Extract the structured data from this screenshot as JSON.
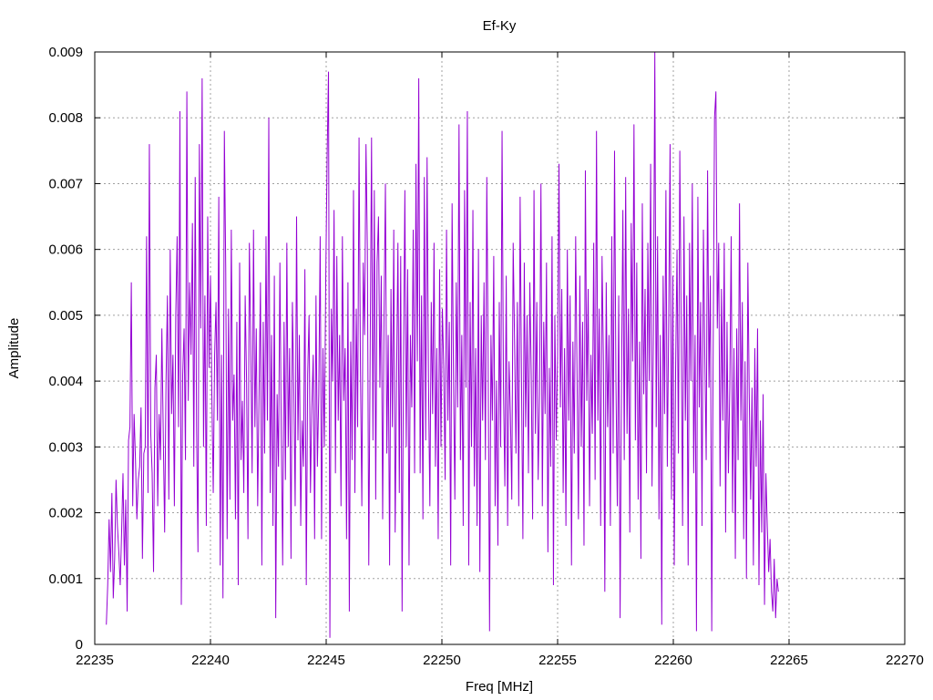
{
  "chart_data": {
    "type": "line",
    "title": "Ef-Ky",
    "xlabel": "Freq [MHz]",
    "ylabel": "Amplitude",
    "xlim": [
      22235,
      22270
    ],
    "ylim": [
      0,
      0.009
    ],
    "x_ticks": [
      "22235",
      "22240",
      "22245",
      "22250",
      "22255",
      "22260",
      "22265",
      "22270"
    ],
    "y_ticks": [
      "0",
      "0.001",
      "0.002",
      "0.003",
      "0.004",
      "0.005",
      "0.006",
      "0.007",
      "0.008",
      "0.009"
    ],
    "grid": true,
    "legend": "none",
    "series": [
      {
        "color": "#9400d3",
        "x_start": 22235.5,
        "x_step": 0.06,
        "values": [
          0.0003,
          0.0009,
          0.0019,
          0.0011,
          0.0023,
          0.0007,
          0.0013,
          0.0025,
          0.0018,
          0.0014,
          0.0009,
          0.0017,
          0.0026,
          0.0012,
          0.0022,
          0.0005,
          0.0031,
          0.0033,
          0.0055,
          0.0021,
          0.0035,
          0.0028,
          0.0019,
          0.0025,
          0.0027,
          0.0036,
          0.0013,
          0.0029,
          0.003,
          0.0062,
          0.0023,
          0.0076,
          0.0032,
          0.0026,
          0.0011,
          0.0039,
          0.0044,
          0.0021,
          0.0035,
          0.0028,
          0.0048,
          0.0032,
          0.0017,
          0.004,
          0.0053,
          0.0022,
          0.006,
          0.0035,
          0.0044,
          0.0021,
          0.005,
          0.0062,
          0.0033,
          0.0081,
          0.0006,
          0.0041,
          0.0048,
          0.0028,
          0.0084,
          0.0037,
          0.0055,
          0.0044,
          0.0064,
          0.0027,
          0.0071,
          0.0033,
          0.0014,
          0.0076,
          0.0048,
          0.0086,
          0.003,
          0.0053,
          0.0018,
          0.0065,
          0.0042,
          0.0056,
          0.0038,
          0.0023,
          0.0044,
          0.0052,
          0.0034,
          0.0068,
          0.0012,
          0.0044,
          0.0007,
          0.0078,
          0.0057,
          0.0016,
          0.0051,
          0.0022,
          0.0063,
          0.0034,
          0.0041,
          0.0019,
          0.0049,
          0.0009,
          0.0058,
          0.0028,
          0.0037,
          0.0023,
          0.0053,
          0.004,
          0.0016,
          0.0061,
          0.0046,
          0.0026,
          0.0063,
          0.0033,
          0.0048,
          0.0021,
          0.0038,
          0.0055,
          0.0012,
          0.0049,
          0.0029,
          0.0062,
          0.0034,
          0.008,
          0.0023,
          0.0047,
          0.0018,
          0.0056,
          0.0004,
          0.0038,
          0.0027,
          0.0058,
          0.0032,
          0.0012,
          0.0049,
          0.0025,
          0.0061,
          0.003,
          0.0045,
          0.0013,
          0.0052,
          0.0039,
          0.0021,
          0.0065,
          0.0031,
          0.0047,
          0.0018,
          0.0034,
          0.0027,
          0.0057,
          0.0009,
          0.0041,
          0.005,
          0.0023,
          0.0036,
          0.0044,
          0.0016,
          0.0053,
          0.0027,
          0.0038,
          0.0062,
          0.0016,
          0.0045,
          0.003,
          0.0055,
          0.0074,
          0.0087,
          0.0001,
          0.0051,
          0.004,
          0.0066,
          0.0026,
          0.0059,
          0.0034,
          0.0047,
          0.0021,
          0.0062,
          0.0037,
          0.0045,
          0.0016,
          0.0055,
          0.0005,
          0.0046,
          0.0028,
          0.0069,
          0.0023,
          0.0051,
          0.0033,
          0.0077,
          0.0042,
          0.0021,
          0.0058,
          0.0047,
          0.0076,
          0.006,
          0.0012,
          0.0044,
          0.0077,
          0.0031,
          0.0069,
          0.0022,
          0.0058,
          0.0065,
          0.0039,
          0.0056,
          0.0019,
          0.005,
          0.007,
          0.0029,
          0.0047,
          0.0012,
          0.0054,
          0.0033,
          0.0063,
          0.0017,
          0.004,
          0.0061,
          0.0023,
          0.0059,
          0.0005,
          0.0043,
          0.0069,
          0.003,
          0.0057,
          0.0012,
          0.0047,
          0.0036,
          0.0063,
          0.0026,
          0.0073,
          0.0043,
          0.0086,
          0.0026,
          0.0053,
          0.0019,
          0.0071,
          0.0031,
          0.0074,
          0.004,
          0.0021,
          0.0052,
          0.0035,
          0.0061,
          0.0027,
          0.0045,
          0.0016,
          0.0057,
          0.003,
          0.0051,
          0.0042,
          0.0025,
          0.0063,
          0.0034,
          0.0049,
          0.0012,
          0.0067,
          0.0041,
          0.0022,
          0.0055,
          0.0036,
          0.0079,
          0.0028,
          0.0047,
          0.0018,
          0.0069,
          0.0039,
          0.0081,
          0.0012,
          0.0052,
          0.003,
          0.0066,
          0.0024,
          0.0045,
          0.0018,
          0.006,
          0.0011,
          0.005,
          0.0034,
          0.0055,
          0.0028,
          0.0071,
          0.0043,
          0.0002,
          0.0047,
          0.0034,
          0.0059,
          0.0021,
          0.004,
          0.0015,
          0.0052,
          0.003,
          0.0078,
          0.0039,
          0.0024,
          0.0056,
          0.0018,
          0.0043,
          0.0035,
          0.0022,
          0.0061,
          0.0046,
          0.0029,
          0.0052,
          0.0021,
          0.0068,
          0.004,
          0.0016,
          0.0058,
          0.0033,
          0.005,
          0.0026,
          0.0055,
          0.0041,
          0.0019,
          0.0069,
          0.0032,
          0.0052,
          0.0025,
          0.0038,
          0.007,
          0.0021,
          0.0049,
          0.0035,
          0.0058,
          0.0014,
          0.0042,
          0.0027,
          0.0062,
          0.0009,
          0.005,
          0.0031,
          0.0044,
          0.0073,
          0.0036,
          0.0054,
          0.0023,
          0.0045,
          0.0018,
          0.006,
          0.0034,
          0.0053,
          0.0012,
          0.0046,
          0.0029,
          0.0062,
          0.0041,
          0.0019,
          0.0056,
          0.003,
          0.0049,
          0.0015,
          0.0072,
          0.0037,
          0.0054,
          0.0021,
          0.0044,
          0.0032,
          0.0061,
          0.0025,
          0.0078,
          0.0034,
          0.0051,
          0.0018,
          0.0059,
          0.0043,
          0.0008,
          0.0055,
          0.0033,
          0.0047,
          0.0018,
          0.0062,
          0.0029,
          0.0075,
          0.004,
          0.0021,
          0.0053,
          0.0004,
          0.0039,
          0.0066,
          0.0028,
          0.0071,
          0.0032,
          0.0051,
          0.0017,
          0.0064,
          0.0043,
          0.0079,
          0.0031,
          0.0058,
          0.0022,
          0.0046,
          0.0013,
          0.0067,
          0.0038,
          0.0054,
          0.0026,
          0.0061,
          0.004,
          0.0073,
          0.0024,
          0.0048,
          0.009,
          0.0033,
          0.0062,
          0.0019,
          0.0047,
          0.0003,
          0.0056,
          0.0035,
          0.0069,
          0.0027,
          0.0049,
          0.0076,
          0.0022,
          0.0056,
          0.0012,
          0.0042,
          0.006,
          0.0029,
          0.0075,
          0.0048,
          0.0018,
          0.0065,
          0.0034,
          0.0053,
          0.0012,
          0.0061,
          0.004,
          0.007,
          0.0026,
          0.0047,
          0.0002,
          0.0068,
          0.0036,
          0.0052,
          0.0018,
          0.0063,
          0.0044,
          0.0028,
          0.0072,
          0.0039,
          0.0056,
          0.0002,
          0.0044,
          0.008,
          0.0084,
          0.0048,
          0.0061,
          0.0024,
          0.0054,
          0.0034,
          0.0061,
          0.0017,
          0.0049,
          0.0026,
          0.0039,
          0.0062,
          0.002,
          0.0045,
          0.0013,
          0.0048,
          0.0028,
          0.0067,
          0.0034,
          0.0052,
          0.0016,
          0.0043,
          0.001,
          0.0058,
          0.0038,
          0.0022,
          0.0039,
          0.0012,
          0.0045,
          0.0027,
          0.0048,
          0.0009,
          0.0034,
          0.0017,
          0.0038,
          0.0006,
          0.0026,
          0.0018,
          0.0011,
          0.0016,
          0.0008,
          0.0005,
          0.0013,
          0.0004,
          0.001,
          0.0008
        ]
      }
    ]
  }
}
